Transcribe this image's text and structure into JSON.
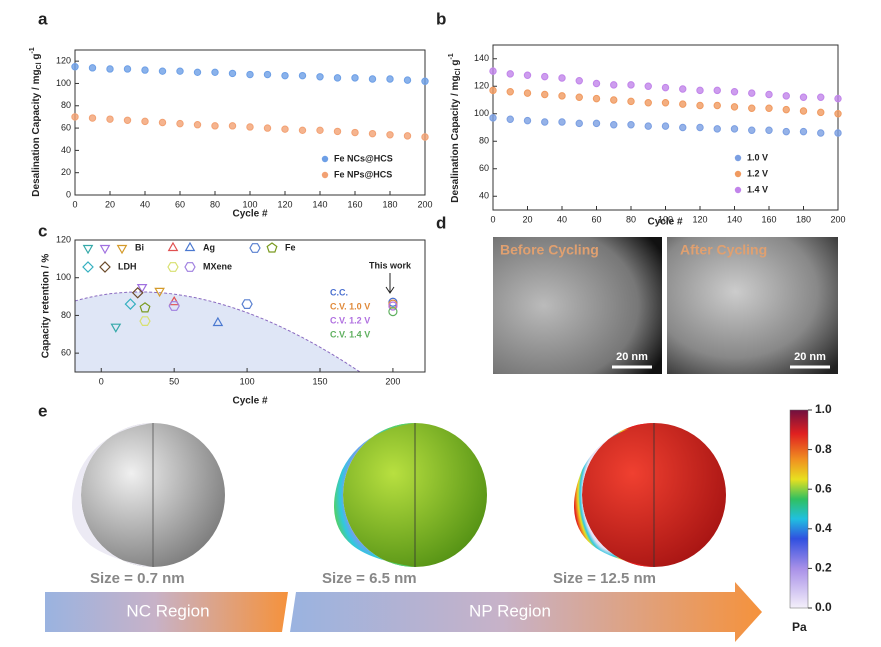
{
  "panel_labels": [
    "a",
    "b",
    "c",
    "d",
    "e"
  ],
  "chart_data": [
    {
      "type": "line",
      "ylabel": [
        "Desalination Capacity / mg",
        "Cl",
        " g",
        "-1"
      ],
      "xlabel": "Cycle #",
      "x": [
        0,
        10,
        20,
        30,
        40,
        50,
        60,
        70,
        80,
        90,
        100,
        110,
        120,
        130,
        140,
        150,
        160,
        170,
        180,
        190,
        200
      ],
      "xlim": [
        0,
        200
      ],
      "xticks": [
        0,
        20,
        40,
        60,
        80,
        100,
        120,
        140,
        160,
        180,
        200
      ],
      "ylim": [
        0,
        130
      ],
      "yticks": [
        0,
        20,
        40,
        60,
        80,
        100,
        120
      ],
      "legend": "lower right",
      "series": [
        {
          "name": "Fe NCs@HCS",
          "color": "#6d9fe6",
          "values": [
            115,
            114,
            113,
            113,
            112,
            111,
            111,
            110,
            110,
            109,
            108,
            108,
            107,
            107,
            106,
            105,
            105,
            104,
            104,
            103,
            102
          ]
        },
        {
          "name": "Fe NPs@HCS",
          "color": "#f2a173",
          "values": [
            70,
            69,
            68,
            67,
            66,
            65,
            64,
            63,
            62,
            62,
            61,
            60,
            59,
            58,
            58,
            57,
            56,
            55,
            54,
            53,
            52
          ]
        }
      ]
    },
    {
      "type": "line",
      "ylabel": [
        "Desalination Capacity / mg",
        "Cl",
        " g",
        "-1"
      ],
      "xlabel": "Cycle #",
      "x": [
        0,
        10,
        20,
        30,
        40,
        50,
        60,
        70,
        80,
        90,
        100,
        110,
        120,
        130,
        140,
        150,
        160,
        170,
        180,
        190,
        200
      ],
      "xlim": [
        0,
        200
      ],
      "xticks": [
        0,
        20,
        40,
        60,
        80,
        100,
        120,
        140,
        160,
        180,
        200
      ],
      "ylim": [
        30,
        150
      ],
      "yticks": [
        40,
        60,
        80,
        100,
        120,
        140
      ],
      "legend": "lower right",
      "series": [
        {
          "name": "1.0 V",
          "color": "#7b9fe2",
          "values": [
            97,
            96,
            95,
            94,
            94,
            93,
            93,
            92,
            92,
            91,
            91,
            90,
            90,
            89,
            89,
            88,
            88,
            87,
            87,
            86,
            86
          ]
        },
        {
          "name": "1.2 V",
          "color": "#f09a60",
          "values": [
            117,
            116,
            115,
            114,
            113,
            112,
            111,
            110,
            109,
            108,
            108,
            107,
            106,
            106,
            105,
            104,
            104,
            103,
            102,
            101,
            100
          ]
        },
        {
          "name": "1.4 V",
          "color": "#c184ea",
          "values": [
            131,
            129,
            128,
            127,
            126,
            124,
            122,
            121,
            121,
            120,
            119,
            118,
            117,
            117,
            116,
            115,
            114,
            113,
            112,
            112,
            111
          ]
        }
      ]
    },
    {
      "type": "scatter",
      "ylabel": "Capacity retention / %",
      "xlabel": "Cycle #",
      "xlim": [
        -18,
        222
      ],
      "xticks": [
        0,
        50,
        100,
        150,
        200
      ],
      "ylim": [
        50,
        120
      ],
      "yticks": [
        60,
        80,
        100,
        120
      ],
      "groups": [
        {
          "name": "Bi",
          "series": [
            {
              "marker": "tri-down",
              "color": "#35a9a9",
              "x": [
                10
              ],
              "values": [
                74
              ]
            },
            {
              "marker": "tri-down",
              "color": "#a070e0",
              "x": [
                28
              ],
              "values": [
                95
              ]
            },
            {
              "marker": "tri-down",
              "color": "#d49a2a",
              "x": [
                40
              ],
              "values": [
                93
              ]
            }
          ]
        },
        {
          "name": "Ag",
          "series": [
            {
              "marker": "tri",
              "color": "#e05050",
              "x": [
                50
              ],
              "values": [
                87
              ]
            },
            {
              "marker": "tri",
              "color": "#4a78d0",
              "x": [
                80
              ],
              "values": [
                76
              ]
            }
          ]
        },
        {
          "name": "Fe",
          "series": [
            {
              "marker": "hexagon",
              "color": "#5a80d0",
              "x": [
                100
              ],
              "values": [
                86
              ]
            },
            {
              "marker": "pentagon",
              "color": "#7a9a20",
              "x": [
                30
              ],
              "values": [
                84
              ]
            }
          ]
        },
        {
          "name": "LDH",
          "series": [
            {
              "marker": "diamond",
              "color": "#35b0c0",
              "x": [
                20
              ],
              "values": [
                86
              ]
            },
            {
              "marker": "diamond",
              "color": "#6b4a2a",
              "x": [
                25
              ],
              "values": [
                92
              ]
            }
          ]
        },
        {
          "name": "MXene",
          "series": [
            {
              "marker": "hexagon",
              "color": "#d8e070",
              "x": [
                30
              ],
              "values": [
                77
              ]
            },
            {
              "marker": "hexagon",
              "color": "#a080e0",
              "x": [
                50
              ],
              "values": [
                85
              ]
            }
          ]
        }
      ],
      "this_work": {
        "label": "This work",
        "series": [
          {
            "name": "C.C.",
            "color": "#4a6fd0",
            "x": [
              200
            ],
            "values": [
              87
            ]
          },
          {
            "name": "C.V. 1.0 V",
            "color": "#e08a3a",
            "x": [
              200
            ],
            "values": [
              86
            ]
          },
          {
            "name": "C.V. 1.2 V",
            "color": "#b070e0",
            "x": [
              200
            ],
            "values": [
              85
            ]
          },
          {
            "name": "C.V. 1.4 V",
            "color": "#60b060",
            "x": [
              200
            ],
            "values": [
              82
            ]
          }
        ]
      }
    }
  ],
  "images": {
    "panels": [
      {
        "title": "Before Cycling",
        "scale": "20 nm"
      },
      {
        "title": "After Cycling",
        "scale": "20 nm"
      }
    ]
  },
  "simulation": {
    "sizes": [
      "Size = 0.7 nm",
      "Size = 6.5 nm",
      "Size = 12.5 nm"
    ],
    "regions": [
      "NC Region",
      "NP Region"
    ],
    "colorbar": {
      "ylim": [
        0,
        1
      ],
      "yticks": [
        {
          "value": 0,
          "label": "0.0"
        },
        {
          "value": 0.2,
          "label": "0.2"
        },
        {
          "value": 0.4,
          "label": "0.4"
        },
        {
          "value": 0.6,
          "label": "0.6"
        },
        {
          "value": 0.8,
          "label": "0.8"
        },
        {
          "value": 1,
          "label": "1.0"
        }
      ],
      "unit": "Pa"
    }
  }
}
